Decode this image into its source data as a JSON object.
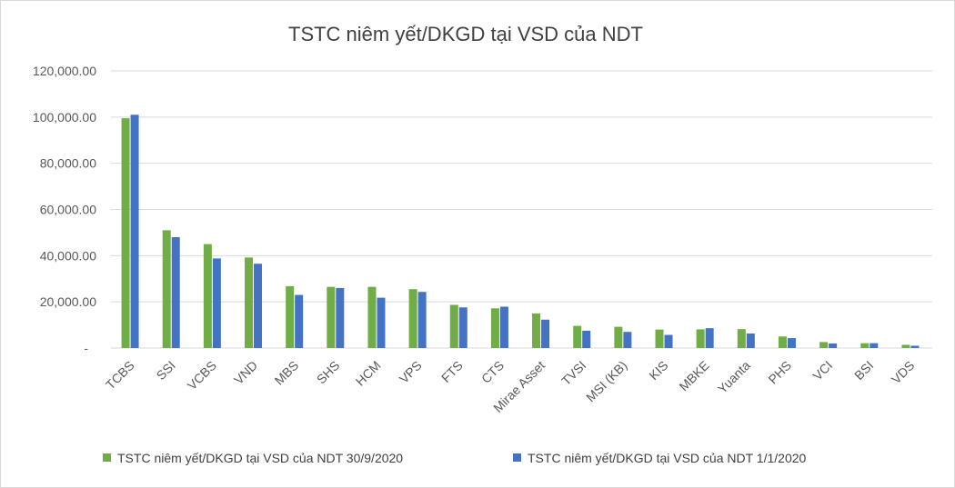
{
  "chart_data": {
    "type": "bar",
    "title": "TSTC  niêm yết/DKGD tại VSD của NDT",
    "xlabel": "",
    "ylabel": "",
    "ylim": [
      0,
      120000
    ],
    "y_ticks": [
      "-",
      "20,000.00",
      "40,000.00",
      "60,000.00",
      "80,000.00",
      "100,000.00",
      "120,000.00"
    ],
    "grid": true,
    "legend_position": "bottom",
    "categories": [
      "TCBS",
      "SSI",
      "VCBS",
      "VND",
      "MBS",
      "SHS",
      "HCM",
      "VPS",
      "FTS",
      "CTS",
      "Mirae Asset",
      "TVSI",
      "MSI (KB)",
      "KIS",
      "MBKE",
      "Yuanta",
      "PHS",
      "VCI",
      "BSI",
      "VDS"
    ],
    "series": [
      {
        "name": "TSTC  niêm yết/DKGD tại VSD của NDT 30/9/2020",
        "color": "#70ad47",
        "values": [
          99500,
          51000,
          45000,
          39200,
          26800,
          26500,
          26500,
          25500,
          18700,
          17200,
          15000,
          9600,
          9200,
          8000,
          8100,
          8200,
          5000,
          2600,
          2100,
          1400
        ]
      },
      {
        "name": "TSTC  niêm yết/DKGD tại VSD của NDT 1/1/2020",
        "color": "#4472c4",
        "values": [
          101000,
          48000,
          38800,
          36500,
          23000,
          26000,
          21800,
          24300,
          17600,
          17900,
          12300,
          7500,
          7000,
          5700,
          8600,
          6300,
          4300,
          2000,
          2100,
          1000
        ]
      }
    ]
  }
}
